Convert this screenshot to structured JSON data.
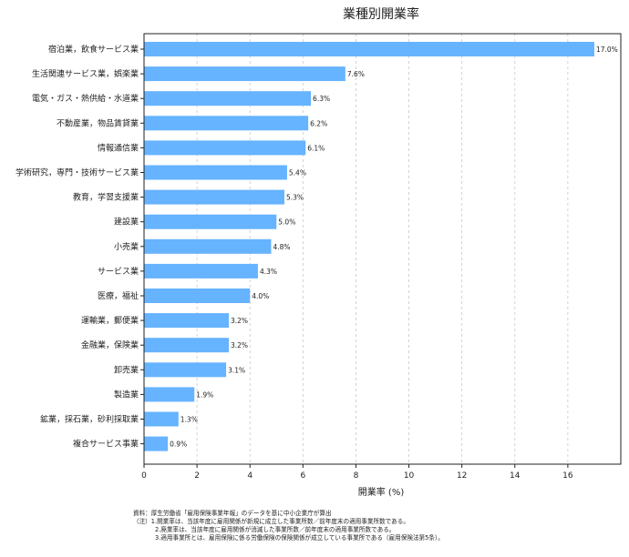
{
  "chart_data": {
    "type": "bar",
    "orientation": "horizontal",
    "title": "業種別開業率",
    "xlabel": "開業率 (%)",
    "ylabel": "",
    "xlim": [
      0,
      18
    ],
    "xticks": [
      "0",
      "2",
      "4",
      "6",
      "8",
      "10",
      "12",
      "14",
      "16"
    ],
    "grid": "vertical-dashed",
    "bar_color": "#66b3ff",
    "categories": [
      "宿泊業，飲食サービス業",
      "生活関連サービス業，娯楽業",
      "電気・ガス・熱供給・水道業",
      "不動産業，物品賃貸業",
      "情報通信業",
      "学術研究，専門・技術サービス業",
      "教育，学習支援業",
      "建設業",
      "小売業",
      "サービス業",
      "医療，福祉",
      "運輸業，郵便業",
      "金融業，保険業",
      "卸売業",
      "製造業",
      "鉱業，採石業，砂利採取業",
      "複合サービス事業"
    ],
    "values": [
      17.0,
      7.6,
      6.3,
      6.2,
      6.1,
      5.4,
      5.3,
      5.0,
      4.8,
      4.3,
      4.0,
      3.2,
      3.2,
      3.1,
      1.9,
      1.3,
      0.9
    ],
    "value_labels": [
      "17.0%",
      "7.6%",
      "6.3%",
      "6.2%",
      "6.1%",
      "5.4%",
      "5.3%",
      "5.0%",
      "4.8%",
      "4.3%",
      "4.0%",
      "3.2%",
      "3.2%",
      "3.1%",
      "1.9%",
      "1.3%",
      "0.9%"
    ]
  },
  "notes": {
    "source": "資料：厚生労働省「雇用保険事業年報」のデータを基に中小企業庁が算出",
    "note1": "（注）1.開業率は、当該年度に雇用関係が新規に成立した事業所数／前年度末の適用事業所数である。",
    "note2": "2.廃業率は、当該年度に雇用関係が消滅した事業所数／前年度末の適用事業所数である。",
    "note3": "3.適用事業所とは、雇用保険に係る労働保険の保険関係が成立している事業所である（雇用保険法第5条）。"
  }
}
